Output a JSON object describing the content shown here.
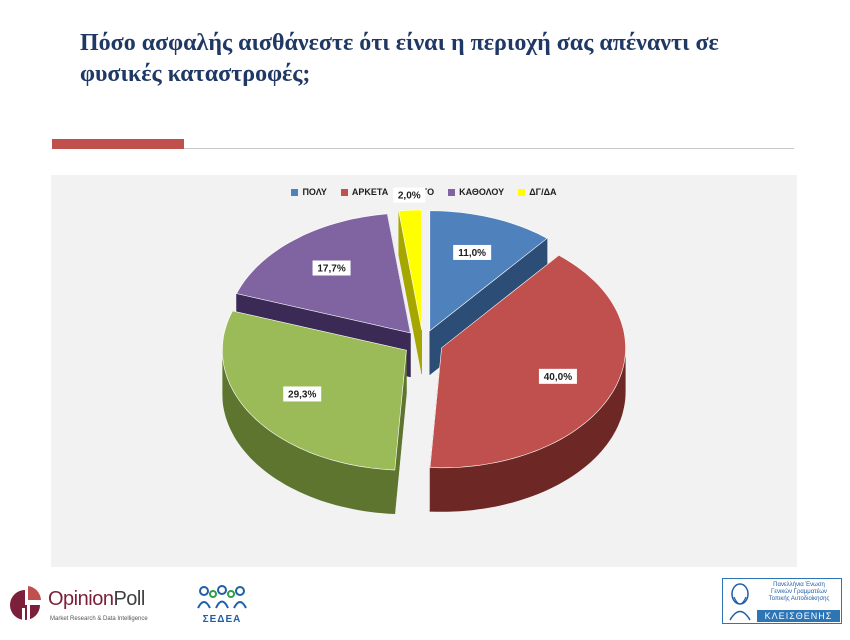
{
  "page": {
    "title": "Πόσο ασφαλής αισθάνεστε ότι είναι η περιοχή σας απέναντι σε φυσικές καταστροφές;"
  },
  "chart_data": {
    "type": "pie",
    "title": "",
    "legend_position": "top",
    "categories": [
      "ΠΟΛΥ",
      "ΑΡΚΕΤΑ",
      "ΛΙΓΟ",
      "ΚΑΘΟΛΟΥ",
      "ΔΓ/ΔΑ"
    ],
    "values": [
      11.0,
      40.0,
      29.3,
      17.7,
      2.0
    ],
    "labels": [
      "11,0%",
      "40,0%",
      "29,3%",
      "17,7%",
      "2,0%"
    ],
    "colors": [
      "#4f81bd",
      "#c0504d",
      "#9bbb59",
      "#8064a2",
      "#ffff00"
    ],
    "side_colors": [
      "#2c4d75",
      "#6d2826",
      "#5e7530",
      "#3a2a55",
      "#a6a600"
    ],
    "exploded": true,
    "three_d": true
  },
  "footer": {
    "brand_name_a": "Opinion",
    "brand_name_b": "Poll",
    "brand_tagline": "Market Research & Data Intelligence",
    "sedea_name": "ΣΕΔΕΑ",
    "kleis_lines": [
      "Πανελλήνια Ένωση",
      "Γενικών Γραμματέων",
      "Τοπικής Αυτοδιοίκησης"
    ],
    "kleis_name": "ΚΛΕΙΣΘΕΝΗΣ"
  }
}
